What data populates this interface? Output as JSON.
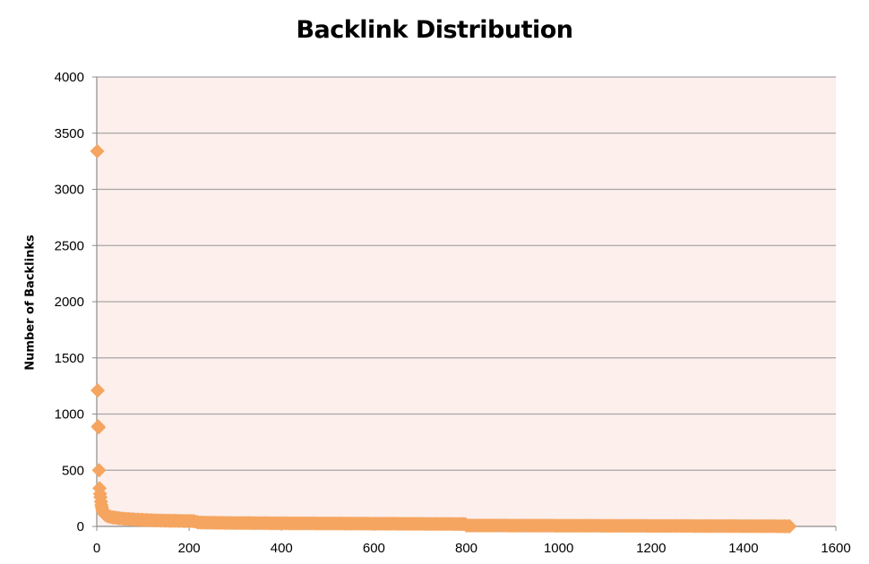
{
  "chart_data": {
    "type": "scatter",
    "title": "Backlink Distribution",
    "xlabel": "",
    "ylabel": "Number of Backlinks",
    "xlim": [
      0,
      1600
    ],
    "ylim": [
      0,
      4000
    ],
    "xticks": [
      0,
      200,
      400,
      600,
      800,
      1000,
      1200,
      1400,
      1600
    ],
    "yticks": [
      0,
      500,
      1000,
      1500,
      2000,
      2500,
      3000,
      3500,
      4000
    ],
    "grid": "horizontal",
    "legend": "none",
    "colors": {
      "marker": "#f5a55f",
      "plot_background": "#fcefec",
      "grid": "#a6a6a6"
    },
    "marker": "diamond",
    "series": [
      {
        "points": [
          [
            1,
            3340
          ],
          [
            2,
            1210
          ],
          [
            3,
            890
          ],
          [
            4,
            880
          ],
          [
            5,
            500
          ],
          [
            6,
            340
          ],
          [
            7,
            290
          ],
          [
            8,
            260
          ],
          [
            9,
            220
          ],
          [
            10,
            190
          ],
          [
            11,
            170
          ],
          [
            12,
            150
          ],
          [
            13,
            140
          ],
          [
            14,
            130
          ],
          [
            15,
            120
          ],
          [
            16,
            115
          ],
          [
            18,
            105
          ],
          [
            20,
            100
          ],
          [
            22,
            95
          ],
          [
            25,
            90
          ],
          [
            30,
            85
          ],
          [
            35,
            80
          ],
          [
            40,
            78
          ],
          [
            45,
            75
          ],
          [
            50,
            72
          ],
          [
            60,
            68
          ],
          [
            70,
            65
          ],
          [
            80,
            62
          ],
          [
            90,
            60
          ],
          [
            100,
            58
          ],
          [
            110,
            56
          ],
          [
            120,
            54
          ],
          [
            130,
            53
          ],
          [
            140,
            52
          ],
          [
            150,
            51
          ],
          [
            160,
            50
          ],
          [
            170,
            50
          ],
          [
            180,
            49
          ],
          [
            190,
            48
          ],
          [
            200,
            48
          ],
          [
            210,
            47
          ],
          [
            220,
            35
          ],
          [
            240,
            33
          ],
          [
            260,
            32
          ],
          [
            280,
            31
          ],
          [
            300,
            30
          ],
          [
            320,
            30
          ],
          [
            340,
            29
          ],
          [
            360,
            29
          ],
          [
            380,
            28
          ],
          [
            400,
            28
          ],
          [
            420,
            27
          ],
          [
            440,
            27
          ],
          [
            460,
            27
          ],
          [
            480,
            26
          ],
          [
            500,
            26
          ],
          [
            520,
            26
          ],
          [
            540,
            25
          ],
          [
            560,
            25
          ],
          [
            580,
            25
          ],
          [
            600,
            24
          ],
          [
            620,
            24
          ],
          [
            640,
            24
          ],
          [
            660,
            23
          ],
          [
            680,
            23
          ],
          [
            700,
            23
          ],
          [
            720,
            22
          ],
          [
            740,
            22
          ],
          [
            760,
            22
          ],
          [
            780,
            21
          ],
          [
            790,
            21
          ],
          [
            800,
            8
          ],
          [
            820,
            8
          ],
          [
            840,
            8
          ],
          [
            860,
            8
          ],
          [
            880,
            8
          ],
          [
            900,
            7
          ],
          [
            920,
            7
          ],
          [
            940,
            7
          ],
          [
            960,
            7
          ],
          [
            980,
            7
          ],
          [
            1000,
            6
          ],
          [
            1020,
            6
          ],
          [
            1040,
            6
          ],
          [
            1060,
            6
          ],
          [
            1080,
            6
          ],
          [
            1100,
            5
          ],
          [
            1120,
            5
          ],
          [
            1140,
            5
          ],
          [
            1160,
            5
          ],
          [
            1180,
            5
          ],
          [
            1200,
            4
          ],
          [
            1220,
            4
          ],
          [
            1240,
            4
          ],
          [
            1260,
            4
          ],
          [
            1280,
            4
          ],
          [
            1300,
            3
          ],
          [
            1320,
            3
          ],
          [
            1340,
            3
          ],
          [
            1360,
            3
          ],
          [
            1380,
            3
          ],
          [
            1400,
            2
          ],
          [
            1420,
            2
          ],
          [
            1440,
            2
          ],
          [
            1460,
            2
          ],
          [
            1480,
            1
          ],
          [
            1490,
            1
          ],
          [
            1500,
            1
          ]
        ]
      }
    ]
  }
}
